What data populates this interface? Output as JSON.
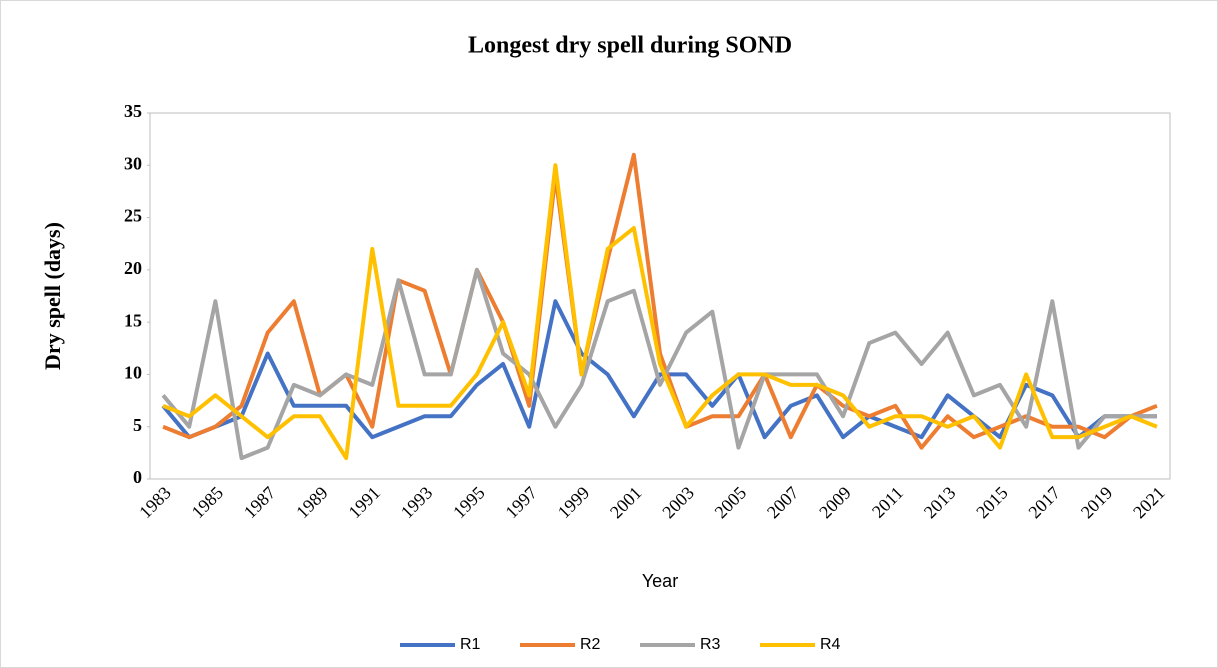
{
  "chart_data": {
    "type": "line",
    "title": "Longest dry spell during SOND",
    "x_label": "Year",
    "y_label": "Dry spell (days)",
    "categories": [
      "1983",
      null,
      "1985",
      null,
      "1987",
      null,
      "1989",
      null,
      "1991",
      null,
      "1993",
      null,
      "1995",
      null,
      "1997",
      null,
      "1999",
      null,
      "2001",
      null,
      "2003",
      null,
      "2005",
      null,
      "2007",
      null,
      "2009",
      null,
      "2011",
      null,
      "2013",
      null,
      "2015",
      null,
      "2017",
      null,
      "2019",
      null,
      "2021"
    ],
    "series": [
      {
        "name": "R1",
        "color": "#4472c4",
        "values": [
          7,
          4,
          5,
          6,
          12,
          7,
          7,
          7,
          4,
          5,
          6,
          6,
          9,
          11,
          5,
          17,
          12,
          10,
          6,
          10,
          10,
          7,
          10,
          4,
          7,
          8,
          4,
          6,
          5,
          4,
          8,
          6,
          4,
          9,
          8,
          4,
          6,
          6,
          6
        ]
      },
      {
        "name": "R2",
        "color": "#ed7d31",
        "values": [
          5,
          4,
          5,
          7,
          14,
          17,
          8,
          10,
          5,
          19,
          18,
          10,
          20,
          15,
          7,
          29,
          10,
          21,
          31,
          12,
          5,
          6,
          6,
          10,
          4,
          9,
          7,
          6,
          7,
          3,
          6,
          4,
          5,
          6,
          5,
          5,
          4,
          6,
          7
        ]
      },
      {
        "name": "R3",
        "color": "#a5a5a5",
        "values": [
          8,
          5,
          17,
          2,
          3,
          9,
          8,
          10,
          9,
          19,
          10,
          10,
          20,
          12,
          10,
          5,
          9,
          17,
          18,
          9,
          14,
          16,
          3,
          10,
          10,
          10,
          6,
          13,
          14,
          11,
          14,
          8,
          9,
          5,
          17,
          3,
          6,
          6,
          6
        ]
      },
      {
        "name": "R4",
        "color": "#ffc000",
        "values": [
          7,
          6,
          8,
          6,
          4,
          6,
          6,
          2,
          22,
          7,
          7,
          7,
          10,
          15,
          8,
          30,
          10,
          22,
          24,
          11,
          5,
          8,
          10,
          10,
          9,
          9,
          8,
          5,
          6,
          6,
          5,
          6,
          3,
          10,
          4,
          4,
          5,
          6,
          5
        ]
      }
    ],
    "ylim": [
      0,
      35
    ],
    "yticks": [
      0,
      5,
      10,
      15,
      20,
      25,
      30,
      35
    ],
    "legend": "bottom"
  }
}
